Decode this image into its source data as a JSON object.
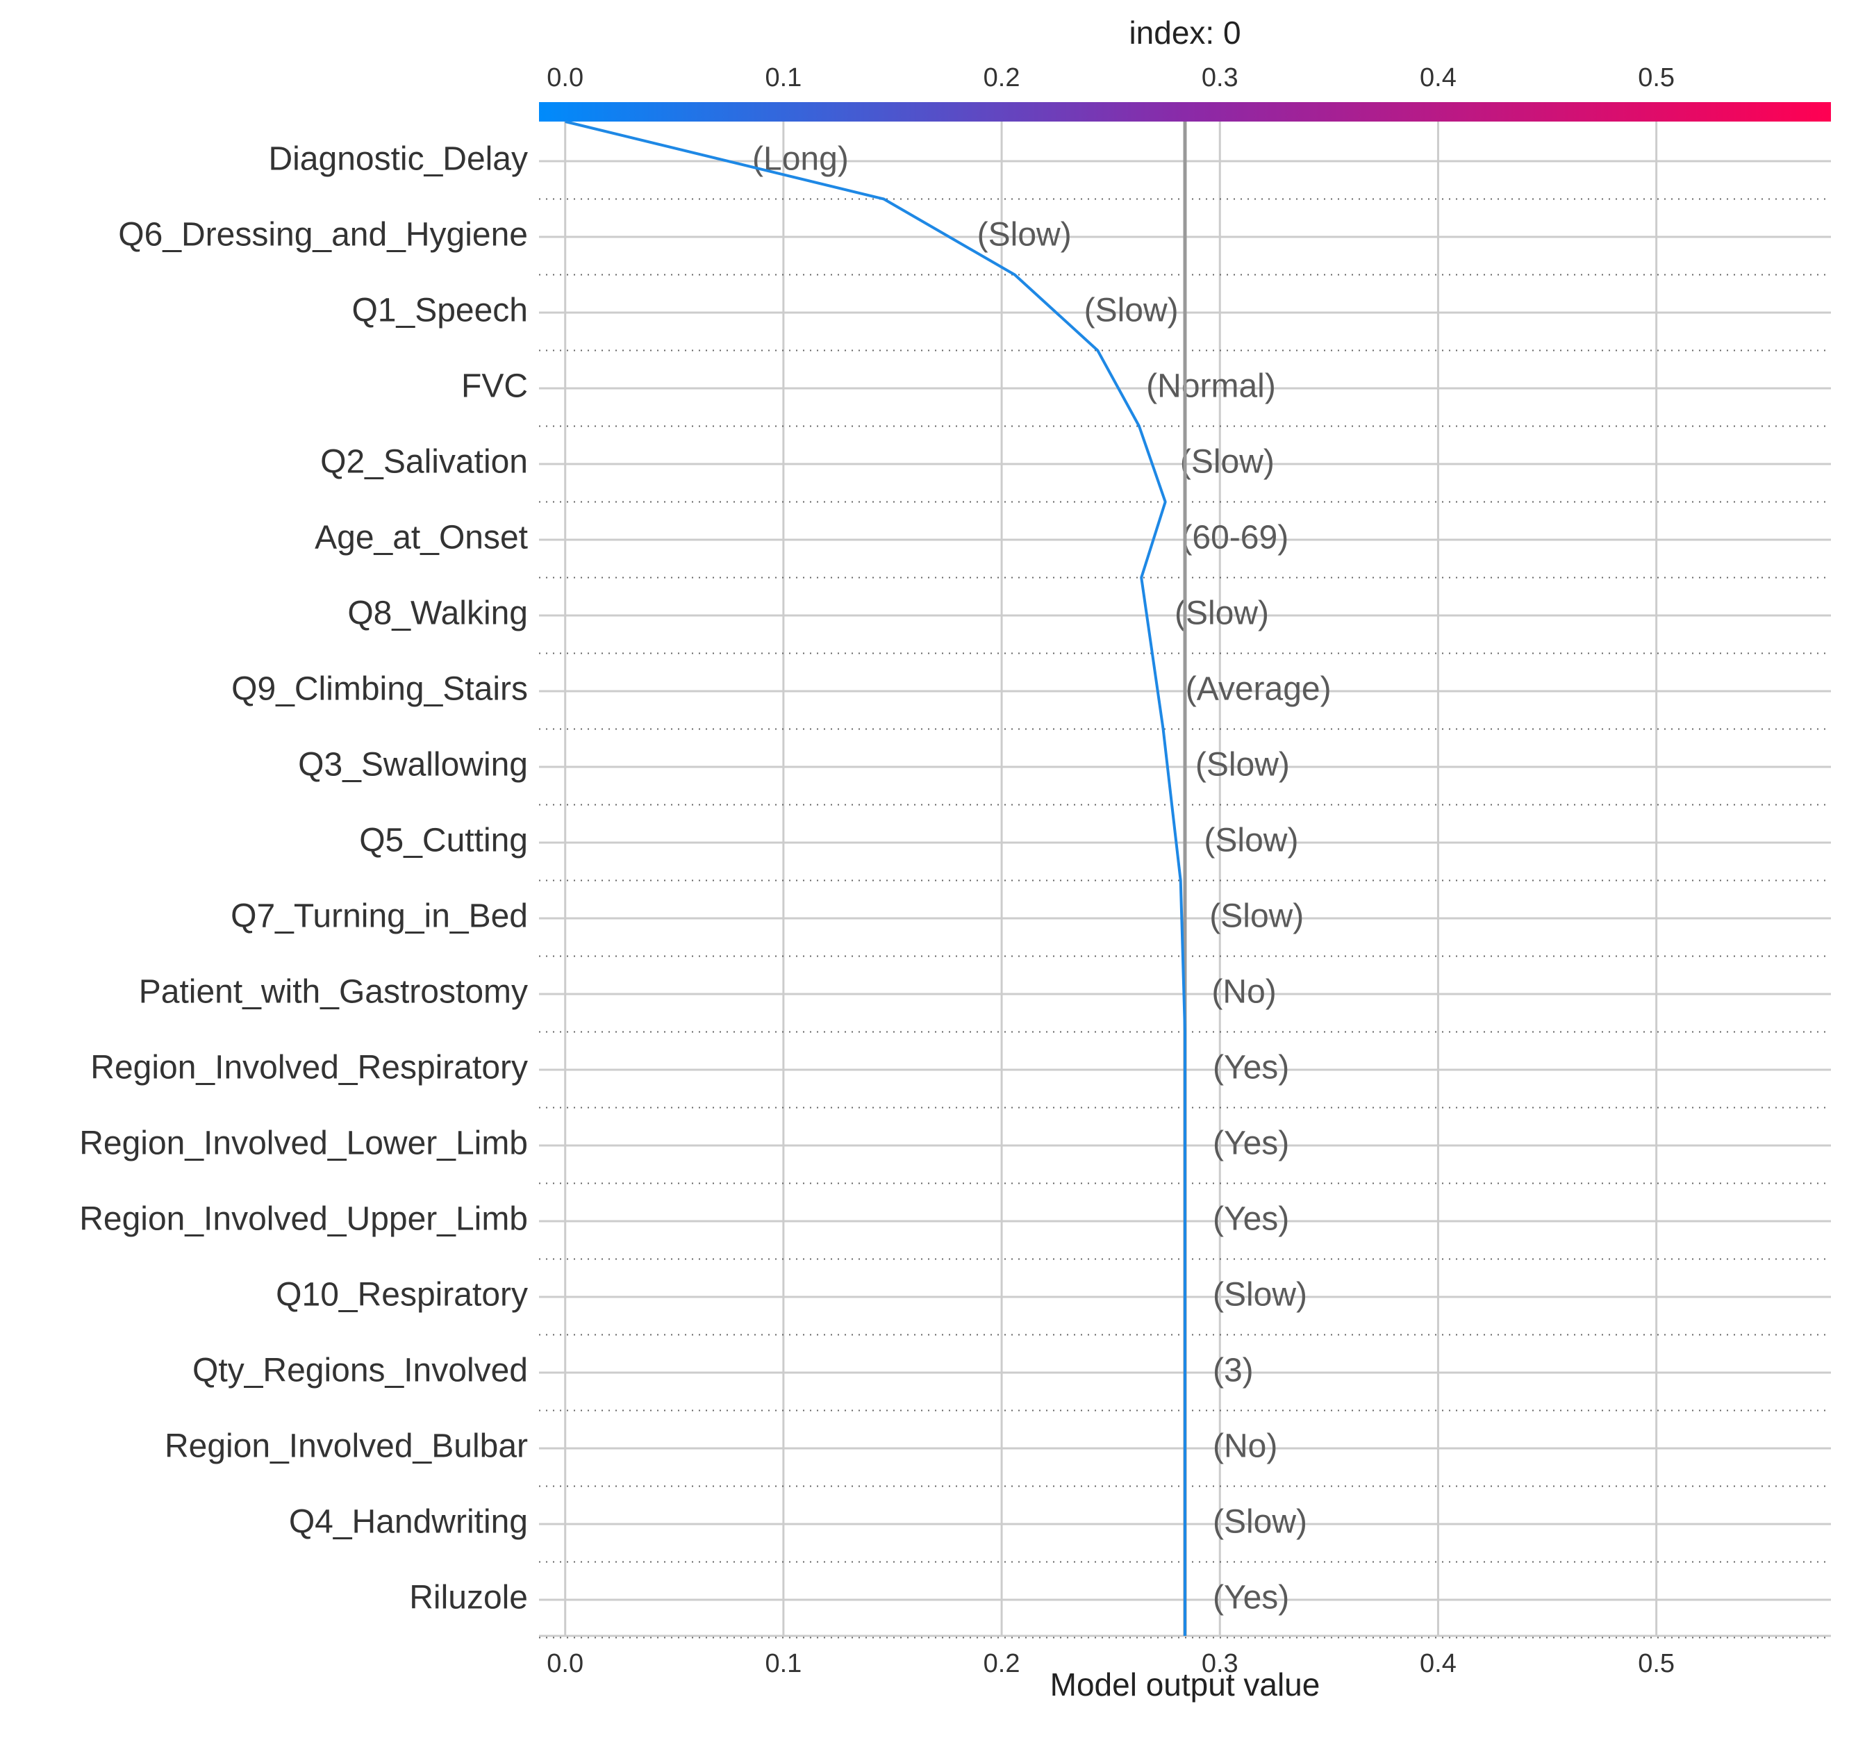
{
  "chart_data": {
    "type": "line",
    "title": "index: 0",
    "xlabel": "Model output value",
    "xlim": [
      -0.012,
      0.58
    ],
    "xticks": [
      0.0,
      0.1,
      0.2,
      0.3,
      0.4,
      0.5
    ],
    "xtick_labels": [
      "0.0",
      "0.1",
      "0.2",
      "0.3",
      "0.4",
      "0.5"
    ],
    "base_value": 0.0,
    "output_value": 0.284,
    "colorbar": {
      "from": "#008bfb",
      "mid": "#8a2aa8",
      "to": "#ff0052"
    },
    "line_color": "#1e88e5",
    "reference_line_color": "#999999",
    "features": [
      {
        "name": "Diagnostic_Delay",
        "value_label": "(Long)"
      },
      {
        "name": "Q6_Dressing_and_Hygiene",
        "value_label": "(Slow)"
      },
      {
        "name": "Q1_Speech",
        "value_label": "(Slow)"
      },
      {
        "name": "FVC",
        "value_label": "(Normal)"
      },
      {
        "name": "Q2_Salivation",
        "value_label": "(Slow)"
      },
      {
        "name": "Age_at_Onset",
        "value_label": "(60-69)"
      },
      {
        "name": "Q8_Walking",
        "value_label": "(Slow)"
      },
      {
        "name": "Q9_Climbing_Stairs",
        "value_label": "(Average)"
      },
      {
        "name": "Q3_Swallowing",
        "value_label": "(Slow)"
      },
      {
        "name": "Q5_Cutting",
        "value_label": "(Slow)"
      },
      {
        "name": "Q7_Turning_in_Bed",
        "value_label": "(Slow)"
      },
      {
        "name": "Patient_with_Gastrostomy",
        "value_label": "(No)"
      },
      {
        "name": "Region_Involved_Respiratory",
        "value_label": "(Yes)"
      },
      {
        "name": "Region_Involved_Lower_Limb",
        "value_label": "(Yes)"
      },
      {
        "name": "Region_Involved_Upper_Limb",
        "value_label": "(Yes)"
      },
      {
        "name": "Q10_Respiratory",
        "value_label": "(Slow)"
      },
      {
        "name": "Qty_Regions_Involved",
        "value_label": "(3)"
      },
      {
        "name": "Region_Involved_Bulbar",
        "value_label": "(No)"
      },
      {
        "name": "Q4_Handwriting",
        "value_label": "(Slow)"
      },
      {
        "name": "Riluzole",
        "value_label": "(Yes)"
      }
    ],
    "cumulative_path": [
      0.0,
      0.146,
      0.206,
      0.244,
      0.263,
      0.275,
      0.264,
      0.269,
      0.274,
      0.278,
      0.282,
      0.283,
      0.284,
      0.284,
      0.284,
      0.284,
      0.284,
      0.284,
      0.284,
      0.284,
      0.284
    ]
  }
}
